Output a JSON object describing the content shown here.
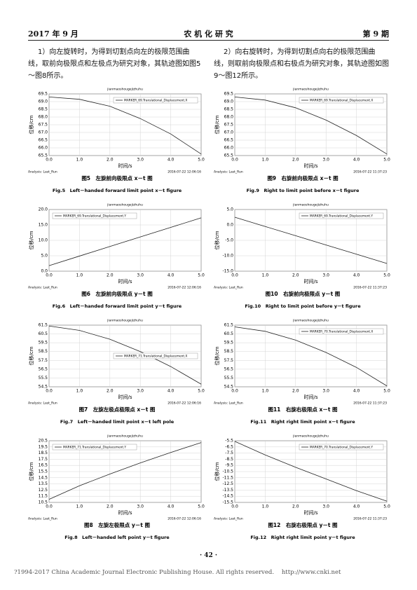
{
  "header": {
    "date": "2017 年 9 月",
    "journal": "农 机 化 研 究",
    "issue": "第 9 期"
  },
  "paragraphs": [
    "1）向左旋转时，为得到切割点向左的极限范围曲线，取前向极限点和左极点为研究对象，其轨迹图如图5～图8所示。",
    "2）向右旋转时，为得到切割点向右的极限范围曲线，则取前向极限点和右极点为研究对象，其轨迹图如图9～图12所示。"
  ],
  "chart_data": [
    {
      "type": "line",
      "title": "jianmaoshougejizhuhu",
      "xlabel": "时间/s",
      "ylabel": "位移/cm",
      "analysis": "Analysis: Last_Run",
      "timestamp": "2016-07-22 12:06:16",
      "caption_cn": "图5　左旋前向极限点 x－t 图",
      "caption_en": "Fig.5　Left－handed forward limit point x－t figure",
      "legend": "upper right",
      "grid": true,
      "x": [
        0,
        1,
        2,
        3,
        4,
        5
      ],
      "series": [
        {
          "name": "MARKER_69.Translational_Displacement.X",
          "color": "#222222",
          "values": [
            69.3,
            69.15,
            68.7,
            67.9,
            66.9,
            65.6
          ]
        }
      ],
      "xlim": [
        0,
        5
      ],
      "xticks": [
        {
          "value": 0,
          "label": "0.0"
        },
        {
          "value": 1,
          "label": "1.0"
        },
        {
          "value": 2,
          "label": "2.0"
        },
        {
          "value": 3,
          "label": "3.0"
        },
        {
          "value": 4,
          "label": "4.0"
        },
        {
          "value": 5,
          "label": "5.0"
        }
      ],
      "ylim": [
        65.5,
        69.5
      ],
      "yticks": [
        65.5,
        {
          "value": 66,
          "label": "66.0"
        },
        66.5,
        {
          "value": 67,
          "label": "67.0"
        },
        67.5,
        {
          "value": 68,
          "label": "68.0"
        },
        68.5,
        {
          "value": 69,
          "label": "69.0"
        },
        69.5
      ]
    },
    {
      "type": "line",
      "title": "jianmaoshougejizhuhu",
      "xlabel": "时间/s",
      "ylabel": "位移/cm",
      "analysis": "Analysis: Last_Run",
      "timestamp": "2016-07-22 12:06:16",
      "caption_cn": "图6　左旋前向极限点 y－t 图",
      "caption_en": "Fig.6　Left－handed forward limit point y－t figure",
      "legend": "upper left",
      "grid": true,
      "x": [
        0,
        1,
        2,
        3,
        4,
        5
      ],
      "series": [
        {
          "name": "MARKER_69.Translational_Displacement.Y",
          "color": "#222222",
          "values": [
            1.8,
            4.9,
            8.0,
            11.1,
            14.2,
            17.3
          ]
        }
      ],
      "xlim": [
        0,
        5
      ],
      "xticks": [
        {
          "value": 0,
          "label": "0.0"
        },
        {
          "value": 1,
          "label": "1.0"
        },
        {
          "value": 2,
          "label": "2.0"
        },
        {
          "value": 3,
          "label": "3.0"
        },
        {
          "value": 4,
          "label": "4.0"
        },
        {
          "value": 5,
          "label": "5.0"
        }
      ],
      "ylim": [
        0,
        20
      ],
      "yticks": [
        {
          "value": 0,
          "label": "0.0"
        },
        {
          "value": 5,
          "label": "5.0"
        },
        {
          "value": 10,
          "label": "10.0"
        },
        {
          "value": 15,
          "label": "15.0"
        },
        {
          "value": 20,
          "label": "20.0"
        }
      ]
    },
    {
      "type": "line",
      "title": "jianmaoshougejizhuhu",
      "xlabel": "时间/s",
      "ylabel": "位移/cm",
      "analysis": "Analysis: Last_Run",
      "timestamp": "2016-07-22 12:06:16",
      "caption_cn": "图7　左旋左极点极限点 x－t 图",
      "caption_en": "Fig.7　Left－handed limit point x－t left pole",
      "legend": "center right",
      "grid": true,
      "x": [
        0,
        1,
        2,
        3,
        4,
        5
      ],
      "series": [
        {
          "name": "MARKER_71.Translational_Displacement.X",
          "color": "#222222",
          "values": [
            61.4,
            60.9,
            59.9,
            58.5,
            56.8,
            54.8
          ]
        }
      ],
      "xlim": [
        0,
        5
      ],
      "xticks": [
        {
          "value": 0,
          "label": "0.0"
        },
        {
          "value": 1,
          "label": "1.0"
        },
        {
          "value": 2,
          "label": "2.0"
        },
        {
          "value": 3,
          "label": "3.0"
        },
        {
          "value": 4,
          "label": "4.0"
        },
        {
          "value": 5,
          "label": "5.0"
        }
      ],
      "ylim": [
        54.5,
        61.5
      ],
      "yticks": [
        54.5,
        55.5,
        56.5,
        57.5,
        58.5,
        59.5,
        60.5,
        61.5
      ]
    },
    {
      "type": "line",
      "title": "jianmaoshougejizhuhu",
      "xlabel": "时间/s",
      "ylabel": "位移/cm",
      "analysis": "Analysis: Last_Run",
      "timestamp": "2016-07-22 12:06:16",
      "caption_cn": "图8　左旋左极限点 y－t 图",
      "caption_en": "Fig.8　Left－handed left point y－t figure",
      "legend": "upper left",
      "grid": true,
      "x": [
        0,
        1,
        2,
        3,
        4,
        5
      ],
      "series": [
        {
          "name": "MARKER_71.Translational_Displacement.Y",
          "color": "#222222",
          "values": [
            11.0,
            13.2,
            15.1,
            16.9,
            18.6,
            20.2
          ]
        }
      ],
      "xlim": [
        0,
        5
      ],
      "xticks": [
        {
          "value": 0,
          "label": "0.0"
        },
        {
          "value": 1,
          "label": "1.0"
        },
        {
          "value": 2,
          "label": "2.0"
        },
        {
          "value": 3,
          "label": "3.0"
        },
        {
          "value": 4,
          "label": "4.0"
        },
        {
          "value": 5,
          "label": "5.0"
        }
      ],
      "ylim": [
        10.5,
        20.5
      ],
      "yticks": [
        10.5,
        11.5,
        12.5,
        13.5,
        14.5,
        15.5,
        16.5,
        17.5,
        18.5,
        19.5,
        20.5
      ]
    },
    {
      "type": "line",
      "title": "jianmaoshougejizhuhu",
      "xlabel": "时间/s",
      "ylabel": "位移/cm",
      "analysis": "Analysis: Last_Run",
      "timestamp": "2016-07-22 11:37:23",
      "caption_cn": "图9　右旋前向极限点 x－t 图",
      "caption_en": "Fig.9　Right to limit point before x－t figure",
      "legend": "upper right",
      "grid": true,
      "x": [
        0,
        1,
        2,
        3,
        4,
        5
      ],
      "series": [
        {
          "name": "MARKER_69.Translational_Displacement.X",
          "color": "#222222",
          "values": [
            69.3,
            69.1,
            68.6,
            67.8,
            66.8,
            65.6
          ]
        }
      ],
      "xlim": [
        0,
        5
      ],
      "xticks": [
        {
          "value": 0,
          "label": "0.0"
        },
        {
          "value": 1,
          "label": "1.0"
        },
        {
          "value": 2,
          "label": "2.0"
        },
        {
          "value": 3,
          "label": "3.0"
        },
        {
          "value": 4,
          "label": "4.0"
        },
        {
          "value": 5,
          "label": "5.0"
        }
      ],
      "ylim": [
        65.5,
        69.5
      ],
      "yticks": [
        65.5,
        {
          "value": 66,
          "label": "66.0"
        },
        66.5,
        {
          "value": 67,
          "label": "67.0"
        },
        67.5,
        {
          "value": 68,
          "label": "68.0"
        },
        68.5,
        {
          "value": 69,
          "label": "69.0"
        },
        69.5
      ]
    },
    {
      "type": "line",
      "title": "jianmaoshougejizhuhu",
      "xlabel": "时间/s",
      "ylabel": "位移/cm",
      "analysis": "Analysis: Last_Run",
      "timestamp": "2016-07-22 11:37:23",
      "caption_cn": "图10　右旋前向极限点 y－t 图",
      "caption_en": "Fig.10　Right to limit point before y－t figure",
      "legend": "upper right",
      "grid": true,
      "x": [
        0,
        1,
        2,
        3,
        4,
        5
      ],
      "series": [
        {
          "name": "MARKER_69.Translational_Displacement.Y",
          "color": "#222222",
          "values": [
            2.5,
            -0.5,
            -3.5,
            -6.5,
            -9.5,
            -12.5
          ]
        }
      ],
      "xlim": [
        0,
        5
      ],
      "xticks": [
        {
          "value": 0,
          "label": "0.0"
        },
        {
          "value": 1,
          "label": "1.0"
        },
        {
          "value": 2,
          "label": "2.0"
        },
        {
          "value": 3,
          "label": "3.0"
        },
        {
          "value": 4,
          "label": "4.0"
        },
        {
          "value": 5,
          "label": "5.0"
        }
      ],
      "ylim": [
        -15,
        5
      ],
      "yticks": [
        {
          "value": -15,
          "label": "-15.0"
        },
        {
          "value": -10,
          "label": "-10.0"
        },
        {
          "value": -5,
          "label": "-5.0"
        },
        {
          "value": 0,
          "label": "0.0"
        },
        {
          "value": 5,
          "label": "5.0"
        }
      ]
    },
    {
      "type": "line",
      "title": "jianmaoshougejizhuhu",
      "xlabel": "时间/s",
      "ylabel": "位移/cm",
      "analysis": "Analysis: Last_Run",
      "timestamp": "2016-07-22 11:37:23",
      "caption_cn": "图11　右旋右极限点 x－t 图",
      "caption_en": "Fig.11　Right right limit point x－t figure",
      "legend": "upper right",
      "grid": true,
      "x": [
        0,
        1,
        2,
        3,
        4,
        5
      ],
      "series": [
        {
          "name": "MARKER_70.Translational_Displacement.X",
          "color": "#222222",
          "values": [
            61.3,
            60.8,
            59.8,
            58.4,
            56.7,
            54.6
          ]
        }
      ],
      "xlim": [
        0,
        5
      ],
      "xticks": [
        {
          "value": 0,
          "label": "0.0"
        },
        {
          "value": 1,
          "label": "1.0"
        },
        {
          "value": 2,
          "label": "2.0"
        },
        {
          "value": 3,
          "label": "3.0"
        },
        {
          "value": 4,
          "label": "4.0"
        },
        {
          "value": 5,
          "label": "5.0"
        }
      ],
      "ylim": [
        54.5,
        61.5
      ],
      "yticks": [
        54.5,
        55.5,
        56.5,
        57.5,
        58.5,
        59.5,
        60.5,
        61.5
      ]
    },
    {
      "type": "line",
      "title": "jianmaoshougejizhuhu",
      "xlabel": "时间/s",
      "ylabel": "位移/cm",
      "analysis": "Analysis: Last_Run",
      "timestamp": "2016-07-22 11:37:23",
      "caption_cn": "图12　右旋右极限点 y－t 图",
      "caption_en": "Fig.12　Right right limit point y－t figure",
      "legend": "upper right",
      "grid": true,
      "x": [
        0,
        1,
        2,
        3,
        4,
        5
      ],
      "series": [
        {
          "name": "MARKER_70.Translational_Displacement.Y",
          "color": "#222222",
          "values": [
            -5.6,
            -7.8,
            -9.8,
            -11.7,
            -13.6,
            -15.3
          ]
        }
      ],
      "xlim": [
        0,
        5
      ],
      "xticks": [
        {
          "value": 0,
          "label": "0.0"
        },
        {
          "value": 1,
          "label": "1.0"
        },
        {
          "value": 2,
          "label": "2.0"
        },
        {
          "value": 3,
          "label": "3.0"
        },
        {
          "value": 4,
          "label": "4.0"
        },
        {
          "value": 5,
          "label": "5.0"
        }
      ],
      "ylim": [
        -15.5,
        -5.5
      ],
      "yticks": [
        -15.5,
        -14.5,
        -13.5,
        -12.5,
        -11.5,
        -10.5,
        -9.5,
        -8.5,
        -7.5,
        -6.5,
        -5.5
      ]
    }
  ],
  "page_number": "· 42 ·",
  "footer": "?1994-2017 China Academic Journal Electronic Publishing House. All rights reserved.    http://www.cnki.net"
}
